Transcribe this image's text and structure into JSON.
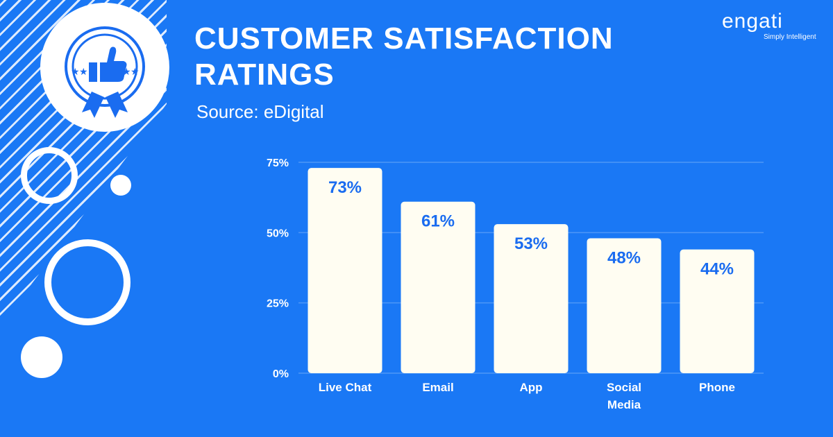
{
  "header": {
    "title": "CUSTOMER SATISFACTION RATINGS",
    "source": "Source: eDigital"
  },
  "logo": {
    "wordmark": "engati",
    "tagline": "Simply Intelligent"
  },
  "colors": {
    "background": "#1a78f5",
    "bar": "#fffdf2",
    "value_text": "#1a6cf0",
    "grid": "#4e97f7"
  },
  "icons": {
    "badge": "thumbs-up-award-icon"
  },
  "chart_data": {
    "type": "bar",
    "title": "CUSTOMER SATISFACTION RATINGS",
    "subtitle": "Source: eDigital",
    "categories": [
      [
        "Live Chat"
      ],
      [
        "Email"
      ],
      [
        "App"
      ],
      [
        "Social",
        "Media"
      ],
      [
        "Phone"
      ]
    ],
    "values": [
      73,
      61,
      53,
      48,
      44
    ],
    "value_labels": [
      "73%",
      "61%",
      "53%",
      "48%",
      "44%"
    ],
    "ylim": [
      0,
      75
    ],
    "yticks": [
      0,
      25,
      50,
      75
    ],
    "ytick_labels": [
      "0%",
      "25%",
      "50%",
      "75%"
    ],
    "grid": true,
    "legend": "none"
  }
}
